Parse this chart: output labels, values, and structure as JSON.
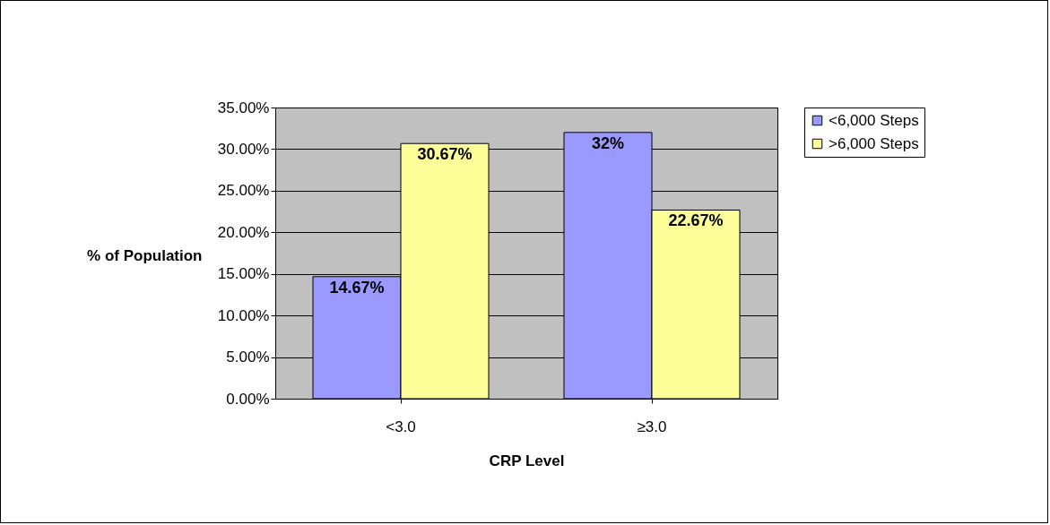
{
  "chart_data": {
    "type": "bar",
    "xlabel": "CRP Level",
    "ylabel": "% of Population",
    "categories": [
      "<3.0",
      "≥3.0"
    ],
    "series": [
      {
        "name": "<6,000 Steps",
        "color": "#9999ff",
        "values": [
          14.67,
          32
        ],
        "value_labels": [
          "14.67%",
          "32%"
        ]
      },
      {
        "name": ">6,000 Steps",
        "color": "#ffff99",
        "values": [
          30.67,
          22.67
        ],
        "value_labels": [
          "30.67%",
          "22.67%"
        ]
      }
    ],
    "ylim": [
      0,
      35
    ],
    "yticks": [
      {
        "value": 0,
        "label": "0.00%"
      },
      {
        "value": 5,
        "label": "5.00%"
      },
      {
        "value": 10,
        "label": "10.00%"
      },
      {
        "value": 15,
        "label": "15.00%"
      },
      {
        "value": 20,
        "label": "20.00%"
      },
      {
        "value": 25,
        "label": "25.00%"
      },
      {
        "value": 30,
        "label": "30.00%"
      },
      {
        "value": 35,
        "label": "35.00%"
      }
    ],
    "grid": "y",
    "legend": "right"
  }
}
